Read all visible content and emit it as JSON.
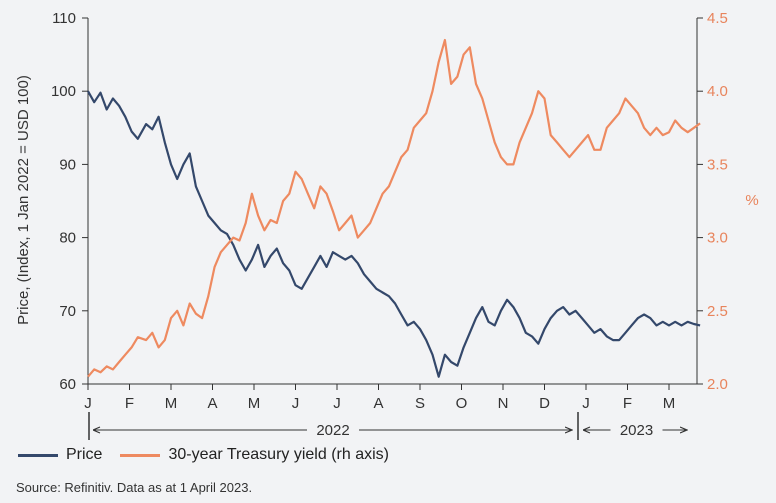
{
  "chart_data": {
    "type": "line",
    "ylabel_left": "Price, (Index, 1 Jan 2022 = USD 100)",
    "ylabel_right": "%",
    "left_axis": {
      "range": [
        60,
        110
      ],
      "ticks": [
        "60",
        "70",
        "80",
        "90",
        "100",
        "110"
      ]
    },
    "right_axis": {
      "range": [
        2.0,
        4.5
      ],
      "ticks": [
        "2.0",
        "2.5",
        "3.0",
        "3.5",
        "4.0",
        "4.5"
      ]
    },
    "x_month_labels": [
      "J",
      "F",
      "M",
      "A",
      "M",
      "J",
      "J",
      "A",
      "S",
      "O",
      "N",
      "D",
      "J",
      "F",
      "M"
    ],
    "year_labels": [
      "2022",
      "2023"
    ],
    "colors": {
      "price": "#34486b",
      "yield": "#ee8a60",
      "axis": "#333333",
      "right_axis": "#e8845c"
    },
    "series": [
      {
        "name": "Price",
        "axis": "left",
        "x": [
          0,
          0.15,
          0.3,
          0.45,
          0.6,
          0.75,
          0.9,
          1.05,
          1.2,
          1.4,
          1.55,
          1.7,
          1.85,
          2.0,
          2.15,
          2.3,
          2.45,
          2.6,
          2.75,
          2.9,
          3.05,
          3.2,
          3.35,
          3.5,
          3.65,
          3.8,
          3.95,
          4.1,
          4.25,
          4.4,
          4.55,
          4.7,
          4.85,
          5.0,
          5.15,
          5.3,
          5.45,
          5.6,
          5.75,
          5.9,
          6.05,
          6.2,
          6.35,
          6.5,
          6.65,
          6.8,
          6.95,
          7.1,
          7.25,
          7.4,
          7.55,
          7.7,
          7.85,
          8.0,
          8.15,
          8.3,
          8.45,
          8.6,
          8.75,
          8.9,
          9.05,
          9.2,
          9.35,
          9.5,
          9.65,
          9.8,
          9.95,
          10.1,
          10.25,
          10.4,
          10.55,
          10.7,
          10.85,
          11.0,
          11.15,
          11.3,
          11.45,
          11.6,
          11.75,
          11.9,
          12.05,
          12.2,
          12.35,
          12.5,
          12.65,
          12.8,
          12.95,
          13.1,
          13.25,
          13.4,
          13.55,
          13.7,
          13.85,
          14.0,
          14.15,
          14.3,
          14.45,
          14.6,
          14.75
        ],
        "values": [
          100,
          98.5,
          99.8,
          97.5,
          99,
          98,
          96.5,
          94.5,
          93.5,
          95.5,
          94.8,
          96.5,
          93,
          90,
          88,
          90,
          91.5,
          87,
          85,
          83,
          82,
          81,
          80.5,
          79,
          77,
          75.5,
          77,
          79,
          76,
          77.5,
          78.5,
          76.5,
          75.5,
          73.5,
          73,
          74.5,
          76,
          77.5,
          76,
          78,
          77.5,
          77,
          77.5,
          76.5,
          75,
          74,
          73,
          72.5,
          72,
          71,
          69.5,
          68,
          68.5,
          67.5,
          66,
          64,
          61,
          64,
          63,
          62.5,
          65,
          67,
          69,
          70.5,
          68.5,
          68,
          70,
          71.5,
          70.5,
          69,
          67,
          66.5,
          65.5,
          67.5,
          69,
          70,
          70.5,
          69.5,
          70,
          69,
          68,
          67,
          67.5,
          66.5,
          66,
          66,
          67,
          68,
          69,
          69.5,
          69,
          68,
          68.5,
          68,
          68.5,
          68,
          68.5,
          68.2,
          68
        ]
      },
      {
        "name": "30-year Treasury yield (rh axis)",
        "axis": "right",
        "x": [
          0,
          0.15,
          0.3,
          0.45,
          0.6,
          0.75,
          0.9,
          1.05,
          1.2,
          1.4,
          1.55,
          1.7,
          1.85,
          2.0,
          2.15,
          2.3,
          2.45,
          2.6,
          2.75,
          2.9,
          3.05,
          3.2,
          3.35,
          3.5,
          3.65,
          3.8,
          3.95,
          4.1,
          4.25,
          4.4,
          4.55,
          4.7,
          4.85,
          5.0,
          5.15,
          5.3,
          5.45,
          5.6,
          5.75,
          5.9,
          6.05,
          6.2,
          6.35,
          6.5,
          6.65,
          6.8,
          6.95,
          7.1,
          7.25,
          7.4,
          7.55,
          7.7,
          7.85,
          8.0,
          8.15,
          8.3,
          8.45,
          8.6,
          8.75,
          8.9,
          9.05,
          9.2,
          9.35,
          9.5,
          9.65,
          9.8,
          9.95,
          10.1,
          10.25,
          10.4,
          10.55,
          10.7,
          10.85,
          11.0,
          11.15,
          11.3,
          11.45,
          11.6,
          11.75,
          11.9,
          12.05,
          12.2,
          12.35,
          12.5,
          12.65,
          12.8,
          12.95,
          13.1,
          13.25,
          13.4,
          13.55,
          13.7,
          13.85,
          14.0,
          14.15,
          14.3,
          14.45,
          14.6,
          14.75
        ],
        "values": [
          2.05,
          2.1,
          2.08,
          2.12,
          2.1,
          2.15,
          2.2,
          2.25,
          2.32,
          2.3,
          2.35,
          2.25,
          2.3,
          2.45,
          2.5,
          2.4,
          2.55,
          2.48,
          2.45,
          2.6,
          2.8,
          2.9,
          2.95,
          3.0,
          2.98,
          3.1,
          3.3,
          3.15,
          3.05,
          3.12,
          3.1,
          3.25,
          3.3,
          3.45,
          3.4,
          3.3,
          3.2,
          3.35,
          3.3,
          3.18,
          3.05,
          3.1,
          3.15,
          3.0,
          3.05,
          3.1,
          3.2,
          3.3,
          3.35,
          3.45,
          3.55,
          3.6,
          3.75,
          3.8,
          3.85,
          4.0,
          4.2,
          4.35,
          4.05,
          4.1,
          4.25,
          4.3,
          4.05,
          3.95,
          3.8,
          3.65,
          3.55,
          3.5,
          3.5,
          3.65,
          3.75,
          3.85,
          4.0,
          3.95,
          3.7,
          3.65,
          3.6,
          3.55,
          3.6,
          3.65,
          3.7,
          3.6,
          3.6,
          3.75,
          3.8,
          3.85,
          3.95,
          3.9,
          3.85,
          3.75,
          3.7,
          3.75,
          3.7,
          3.72,
          3.8,
          3.75,
          3.72,
          3.75,
          3.78
        ]
      }
    ]
  },
  "legend": {
    "price_label": "Price",
    "yield_label": "30-year Treasury yield (rh axis)"
  },
  "source": "Source: Refinitiv. Data as at 1 April 2023."
}
